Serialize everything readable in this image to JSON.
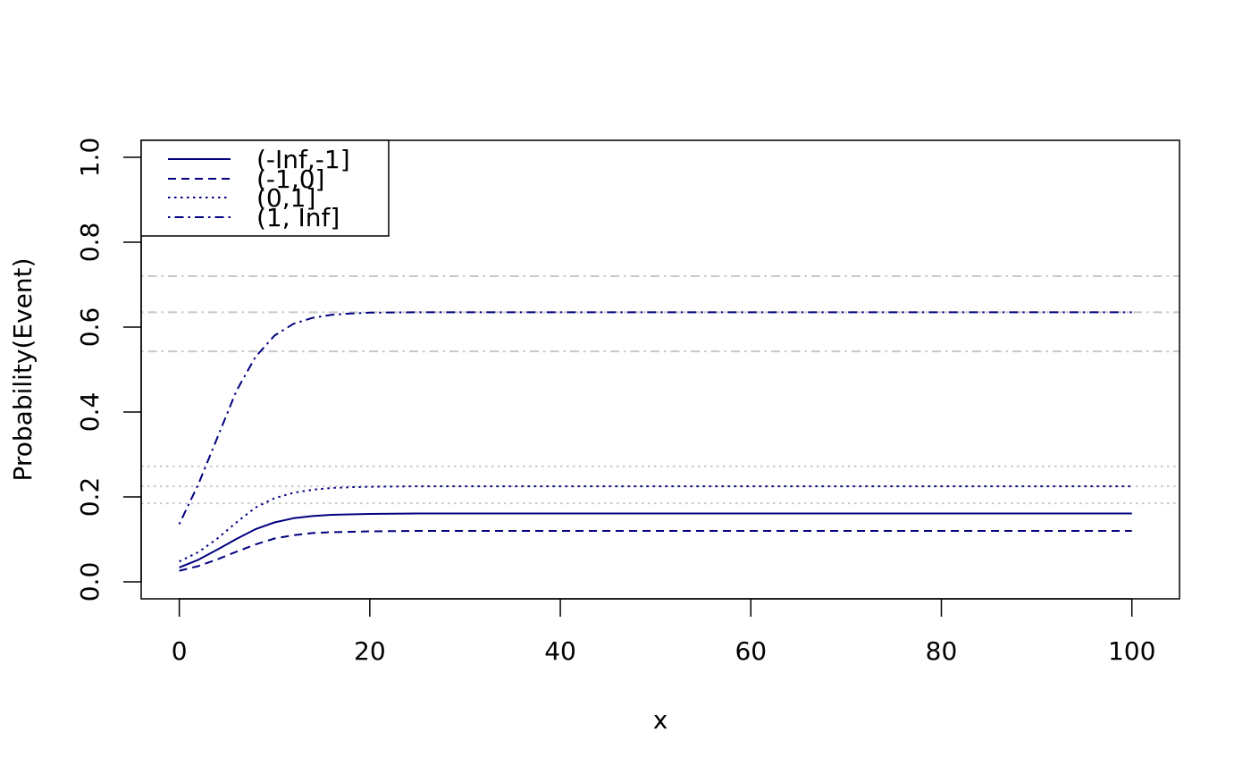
{
  "chart_data": {
    "type": "line",
    "title": "",
    "xlabel": "x",
    "ylabel": "Probability(Event)",
    "xlim": [
      -4,
      105
    ],
    "ylim": [
      -0.04,
      1.04
    ],
    "xticks": [
      0,
      20,
      40,
      60,
      80,
      100
    ],
    "yticks": [
      0.0,
      0.2,
      0.4,
      0.6,
      0.8,
      1.0
    ],
    "ytick_labels": [
      "0.0",
      "0.2",
      "0.4",
      "0.6",
      "0.8",
      "1.0"
    ],
    "grid": false,
    "legend_position": "top-left",
    "line_color": "#000080",
    "reference_color": "#c8c8c8",
    "series": [
      {
        "name": "(-Inf,-1]",
        "dash": "solid",
        "x": [
          0,
          2,
          4,
          6,
          8,
          10,
          12,
          14,
          16,
          18,
          20,
          25,
          30,
          40,
          60,
          80,
          100
        ],
        "values": [
          0.034,
          0.052,
          0.076,
          0.101,
          0.124,
          0.14,
          0.15,
          0.155,
          0.158,
          0.159,
          0.16,
          0.161,
          0.161,
          0.161,
          0.161,
          0.161,
          0.161
        ]
      },
      {
        "name": "(-1,0]",
        "dash": "dashed",
        "x": [
          0,
          2,
          4,
          6,
          8,
          10,
          12,
          14,
          16,
          18,
          20,
          25,
          30,
          40,
          60,
          80,
          100
        ],
        "values": [
          0.026,
          0.037,
          0.053,
          0.071,
          0.088,
          0.102,
          0.11,
          0.115,
          0.117,
          0.118,
          0.119,
          0.12,
          0.12,
          0.12,
          0.12,
          0.12,
          0.12
        ]
      },
      {
        "name": "(0,1]",
        "dash": "dotted",
        "x": [
          0,
          2,
          4,
          6,
          8,
          10,
          12,
          14,
          16,
          18,
          20,
          25,
          30,
          40,
          60,
          80,
          100
        ],
        "values": [
          0.048,
          0.07,
          0.102,
          0.14,
          0.175,
          0.197,
          0.21,
          0.217,
          0.221,
          0.223,
          0.224,
          0.225,
          0.225,
          0.225,
          0.225,
          0.225,
          0.225
        ]
      },
      {
        "name": "(1, Inf]",
        "dash": "dotdash",
        "x": [
          0,
          2,
          4,
          6,
          8,
          10,
          12,
          14,
          16,
          18,
          20,
          25,
          30,
          40,
          60,
          80,
          100
        ],
        "values": [
          0.136,
          0.23,
          0.34,
          0.45,
          0.53,
          0.58,
          0.608,
          0.622,
          0.629,
          0.632,
          0.634,
          0.635,
          0.635,
          0.635,
          0.635,
          0.635,
          0.635
        ]
      }
    ],
    "reference_lines": [
      {
        "y": 0.72,
        "dash": "dotdash"
      },
      {
        "y": 0.635,
        "dash": "dotdash"
      },
      {
        "y": 0.543,
        "dash": "dotdash"
      },
      {
        "y": 0.272,
        "dash": "dotted"
      },
      {
        "y": 0.225,
        "dash": "dotted"
      },
      {
        "y": 0.185,
        "dash": "dotted"
      }
    ]
  }
}
